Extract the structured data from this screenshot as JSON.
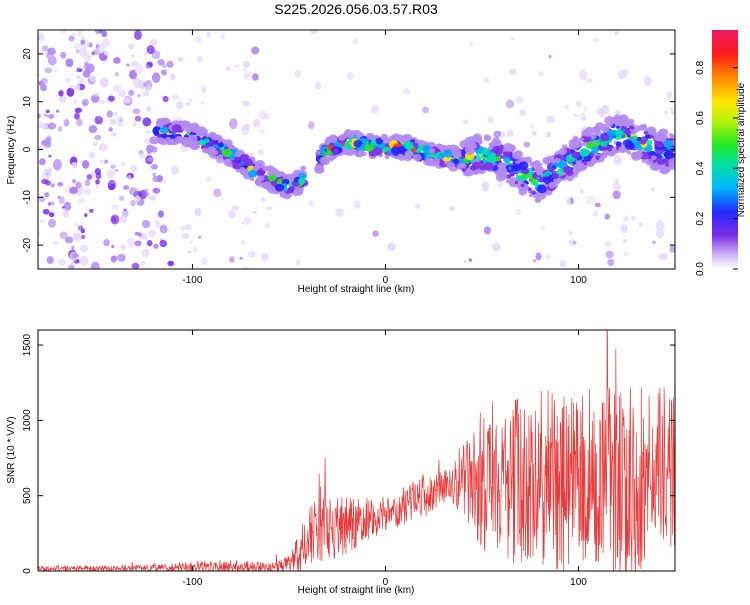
{
  "title": "S225.2026.056.03.57.R03",
  "chart_data": [
    {
      "type": "heatmap",
      "name": "spectrogram",
      "xlabel": "Height of straight line (km)",
      "ylabel": "Frequency (Hz)",
      "xlim": [
        -180,
        150
      ],
      "ylim": [
        -25,
        25
      ],
      "xticks": [
        {
          "v": -100,
          "label": "-100"
        },
        {
          "v": 0,
          "label": "0"
        },
        {
          "v": 100,
          "label": "100"
        }
      ],
      "yticks": [
        {
          "v": -20,
          "label": "-20"
        },
        {
          "v": -10,
          "label": "-10"
        },
        {
          "v": 0,
          "label": "0"
        },
        {
          "v": 10,
          "label": "10"
        },
        {
          "v": 20,
          "label": "20"
        }
      ],
      "ridge": {
        "x": [
          -120,
          -110,
          -100,
          -90,
          -80,
          -70,
          -60,
          -50,
          -45,
          -40,
          -30,
          -20,
          -10,
          0,
          10,
          20,
          30,
          40,
          50,
          60,
          70,
          80,
          90,
          100,
          110,
          120,
          130,
          140,
          150
        ],
        "y": [
          4,
          3.5,
          3,
          1,
          -1,
          -4,
          -6,
          -8,
          -7,
          -5,
          0,
          1.5,
          1,
          0.5,
          0.5,
          -0.5,
          -1.5,
          -2,
          -1,
          -2,
          -5,
          -7,
          -4,
          -1,
          1,
          3,
          2,
          0,
          -1
        ]
      },
      "colorbar": {
        "label": "Normalized spectral amplitude",
        "range": [
          0,
          0.95
        ],
        "ticks": [
          {
            "v": 0.0,
            "label": "0.0"
          },
          {
            "v": 0.2,
            "label": "0.2"
          },
          {
            "v": 0.4,
            "label": "0.4"
          },
          {
            "v": 0.6,
            "label": "0.6"
          },
          {
            "v": 0.8,
            "label": "0.8"
          }
        ]
      }
    },
    {
      "type": "line",
      "name": "snr",
      "xlabel": "Height of straight line (km)",
      "ylabel": "SNR (10 * V/V)",
      "xlim": [
        -180,
        150
      ],
      "ylim": [
        0,
        1600
      ],
      "color": "#e83a3a",
      "xticks": [
        {
          "v": -100,
          "label": "-100"
        },
        {
          "v": 0,
          "label": "0"
        },
        {
          "v": 100,
          "label": "100"
        }
      ],
      "yticks": [
        {
          "v": 0,
          "label": "0"
        },
        {
          "v": 500,
          "label": "500"
        },
        {
          "v": 1000,
          "label": "1000"
        },
        {
          "v": 1500,
          "label": "1500"
        }
      ],
      "envelope": {
        "x": [
          -180,
          -120,
          -100,
          -80,
          -60,
          -50,
          -45,
          -40,
          -30,
          -20,
          -10,
          0,
          10,
          20,
          30,
          40,
          50,
          60,
          80,
          100,
          120,
          140,
          150
        ],
        "mean": [
          15,
          20,
          25,
          25,
          25,
          40,
          100,
          250,
          280,
          300,
          350,
          380,
          430,
          500,
          560,
          600,
          620,
          620,
          600,
          600,
          600,
          600,
          580
        ],
        "spread": [
          15,
          20,
          40,
          50,
          30,
          60,
          150,
          200,
          220,
          200,
          150,
          120,
          120,
          150,
          120,
          200,
          500,
          550,
          600,
          600,
          650,
          650,
          600
        ]
      }
    }
  ]
}
